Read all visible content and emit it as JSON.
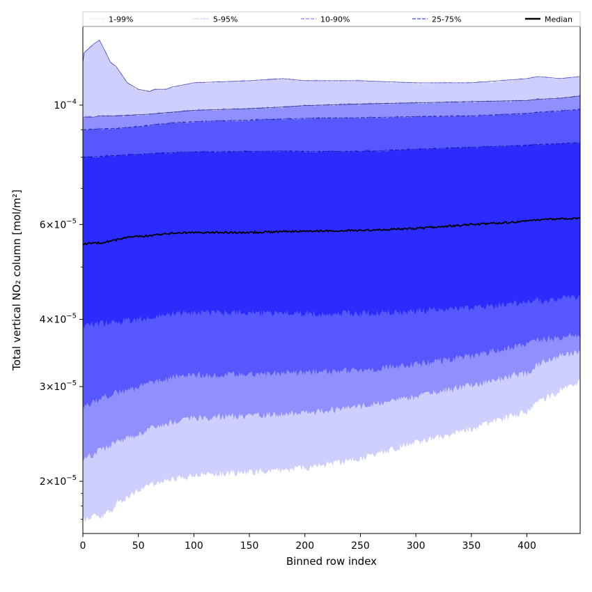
{
  "chart_data": {
    "type": "area",
    "xlabel": "Binned row index",
    "ylabel": "Total vertical NO₂ column [mol/m²]",
    "xlim": [
      0,
      448
    ],
    "ylim": [
      1.6e-05,
      0.00014
    ],
    "y_scale": "log",
    "x_ticks": [
      0,
      50,
      100,
      150,
      200,
      250,
      300,
      350,
      400
    ],
    "y_ticks": [
      {
        "value": 2e-05,
        "mantissa": "2",
        "exponent": "-5"
      },
      {
        "value": 3e-05,
        "mantissa": "3",
        "exponent": "-5"
      },
      {
        "value": 4e-05,
        "mantissa": "4",
        "exponent": "-5"
      },
      {
        "value": 6e-05,
        "mantissa": "6",
        "exponent": "-5"
      },
      {
        "value": 0.0001,
        "mantissa": "",
        "exponent": "-4"
      }
    ],
    "legend_position": "top",
    "legend": [
      {
        "label": "1-99%",
        "color": "#d0d0ff",
        "style": "dotted"
      },
      {
        "label": "5-95%",
        "color": "#a0a0ff",
        "style": "dotted"
      },
      {
        "label": "10-90%",
        "color": "#8080ff",
        "style": "dashed"
      },
      {
        "label": "25-75%",
        "color": "#4040ff",
        "style": "dashed"
      },
      {
        "label": "Median",
        "color": "#000000",
        "style": "solid"
      }
    ],
    "x": [
      0,
      1,
      10,
      15,
      20,
      25,
      30,
      40,
      50,
      60,
      65,
      75,
      80,
      100,
      150,
      180,
      200,
      250,
      300,
      350,
      400,
      410,
      430,
      448
    ],
    "bands": [
      {
        "name": "1-99%",
        "color": "#cfcffd",
        "lower": [
          1.7e-05,
          1.7e-05,
          1.72e-05,
          1.72e-05,
          1.73e-05,
          1.76e-05,
          1.82e-05,
          1.87e-05,
          1.92e-05,
          1.97e-05,
          1.98e-05,
          2.01e-05,
          2.02e-05,
          2.05e-05,
          2.08e-05,
          2.1e-05,
          2.12e-05,
          2.2e-05,
          2.36e-05,
          2.5e-05,
          2.7e-05,
          2.8e-05,
          2.95e-05,
          3.05e-05
        ],
        "upper": [
          0.00012,
          0.000125,
          0.00013,
          0.000132,
          0.000126,
          0.00012,
          0.000118,
          0.00011,
          0.000107,
          0.000106,
          0.000107,
          0.000107,
          0.000108,
          0.00011,
          0.000111,
          0.000112,
          0.000111,
          0.000111,
          0.00011,
          0.00011,
          0.000112,
          0.000113,
          0.000112,
          0.000113
        ]
      },
      {
        "name": "5-95%",
        "color": "#8f8ffe",
        "lower": [
          2.2e-05,
          2.2e-05,
          2.25e-05,
          2.28e-05,
          2.3e-05,
          2.33e-05,
          2.36e-05,
          2.4e-05,
          2.45e-05,
          2.5e-05,
          2.52e-05,
          2.56e-05,
          2.58e-05,
          2.62e-05,
          2.65e-05,
          2.67e-05,
          2.68e-05,
          2.75e-05,
          2.88e-05,
          3.02e-05,
          3.18e-05,
          3.3e-05,
          3.42e-05,
          3.47e-05
        ],
        "upper": [
          9.5e-05,
          9.5e-05,
          9.5e-05,
          9.55e-05,
          9.55e-05,
          9.55e-05,
          9.55e-05,
          9.57e-05,
          9.6e-05,
          9.62e-05,
          9.64e-05,
          9.68e-05,
          9.7e-05,
          9.78e-05,
          9.85e-05,
          9.92e-05,
          9.98e-05,
          0.0001005,
          0.000101,
          0.0001015,
          0.000102,
          0.0001025,
          0.000103,
          0.000104
        ]
      },
      {
        "name": "10-90%",
        "color": "#5757fe",
        "lower": [
          2.75e-05,
          2.75e-05,
          2.8e-05,
          2.85e-05,
          2.88e-05,
          2.9e-05,
          2.92e-05,
          2.95e-05,
          3e-05,
          3.05e-05,
          3.07e-05,
          3.1e-05,
          3.12e-05,
          3.15e-05,
          3.17e-05,
          3.18e-05,
          3.19e-05,
          3.22e-05,
          3.3e-05,
          3.42e-05,
          3.6e-05,
          3.65e-05,
          3.7e-05,
          3.75e-05
        ],
        "upper": [
          9e-05,
          9e-05,
          9.02e-05,
          9.03e-05,
          9.04e-05,
          9.05e-05,
          9.05e-05,
          9.08e-05,
          9.12e-05,
          9.17e-05,
          9.2e-05,
          9.24e-05,
          9.27e-05,
          9.32e-05,
          9.38e-05,
          9.42e-05,
          9.45e-05,
          9.48e-05,
          9.52e-05,
          9.55e-05,
          9.65e-05,
          9.7e-05,
          9.75e-05,
          9.82e-05
        ]
      },
      {
        "name": "25-75%",
        "color": "#2b2bfe",
        "lower": [
          3.9e-05,
          3.9e-05,
          3.92e-05,
          3.93e-05,
          3.94e-05,
          3.95e-05,
          3.96e-05,
          3.98e-05,
          4e-05,
          4.03e-05,
          4.05e-05,
          4.08e-05,
          4.1e-05,
          4.12e-05,
          4.11e-05,
          4.1e-05,
          4.1e-05,
          4.1e-05,
          4.15e-05,
          4.2e-05,
          4.3e-05,
          4.33e-05,
          4.38e-05,
          4.4e-05
        ],
        "upper": [
          8e-05,
          8e-05,
          8.02e-05,
          8.03e-05,
          8.04e-05,
          8.05e-05,
          8.06e-05,
          8.08e-05,
          8.1e-05,
          8.12e-05,
          8.13e-05,
          8.15e-05,
          8.16e-05,
          8.18e-05,
          8.2e-05,
          8.22e-05,
          8.2e-05,
          8.2e-05,
          8.28e-05,
          8.35e-05,
          8.42e-05,
          8.45e-05,
          8.48e-05,
          8.52e-05
        ]
      }
    ],
    "median": {
      "name": "Median",
      "color": "#000000",
      "values": [
        5.5e-05,
        5.52e-05,
        5.55e-05,
        5.55e-05,
        5.57e-05,
        5.6e-05,
        5.62e-05,
        5.68e-05,
        5.7e-05,
        5.72e-05,
        5.74e-05,
        5.76e-05,
        5.78e-05,
        5.8e-05,
        5.8e-05,
        5.82e-05,
        5.83e-05,
        5.85e-05,
        5.9e-05,
        6e-05,
        6.08e-05,
        6.12e-05,
        6.15e-05,
        6.17e-05
      ]
    }
  }
}
